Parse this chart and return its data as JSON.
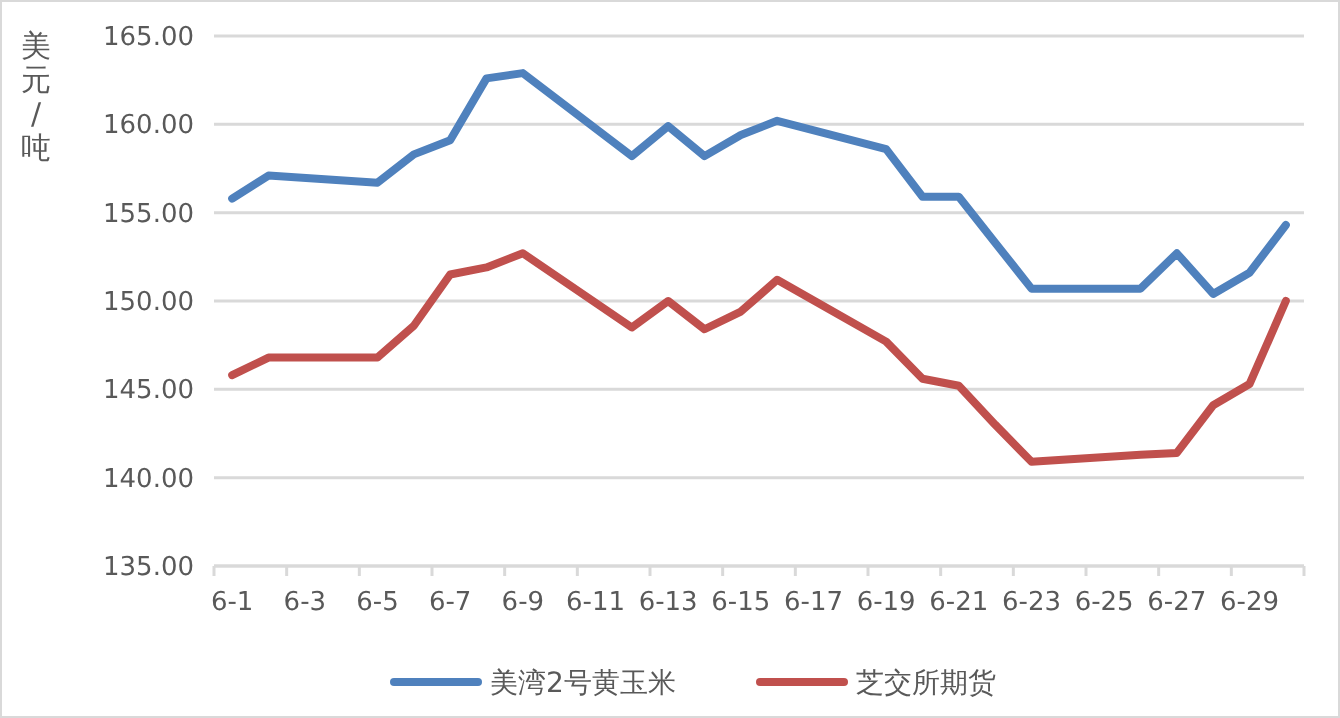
{
  "chart_data": {
    "type": "line",
    "ylabel": "美元/吨",
    "categories": [
      "6-1",
      null,
      "6-3",
      null,
      "6-5",
      null,
      "6-7",
      null,
      "6-9",
      null,
      "6-11",
      null,
      "6-13",
      null,
      "6-15",
      null,
      "6-17",
      null,
      "6-19",
      null,
      "6-21",
      null,
      "6-23",
      null,
      "6-25",
      null,
      "6-27",
      null,
      "6-29",
      null
    ],
    "series": [
      {
        "name": "美湾2号黄玉米",
        "color": "#4f81bd",
        "values": [
          155.8,
          157.1,
          null,
          null,
          156.7,
          158.3,
          159.1,
          162.6,
          162.9,
          null,
          null,
          158.2,
          159.9,
          158.2,
          159.4,
          160.2,
          null,
          null,
          158.6,
          155.9,
          155.9,
          153.3,
          150.7,
          null,
          null,
          150.7,
          152.7,
          150.4,
          151.6,
          154.3
        ]
      },
      {
        "name": "芝交所期货",
        "color": "#c0504d",
        "values": [
          145.8,
          146.8,
          null,
          null,
          146.8,
          148.6,
          151.5,
          151.9,
          152.7,
          null,
          null,
          148.5,
          150.0,
          148.4,
          149.4,
          151.2,
          null,
          null,
          147.7,
          145.6,
          145.2,
          143.0,
          140.9,
          null,
          null,
          141.3,
          141.4,
          144.1,
          145.3,
          150.0
        ]
      }
    ],
    "ylim": [
      135,
      165
    ],
    "yticks": [
      {
        "value": 135,
        "label": "135.00"
      },
      {
        "value": 140,
        "label": "140.00"
      },
      {
        "value": 145,
        "label": "145.00"
      },
      {
        "value": 150,
        "label": "150.00"
      },
      {
        "value": 155,
        "label": "155.00"
      },
      {
        "value": 160,
        "label": "160.00"
      },
      {
        "value": 165,
        "label": "165.00"
      }
    ],
    "grid": "y",
    "legend": "bottom",
    "marker": "none",
    "line_style": "solid"
  }
}
